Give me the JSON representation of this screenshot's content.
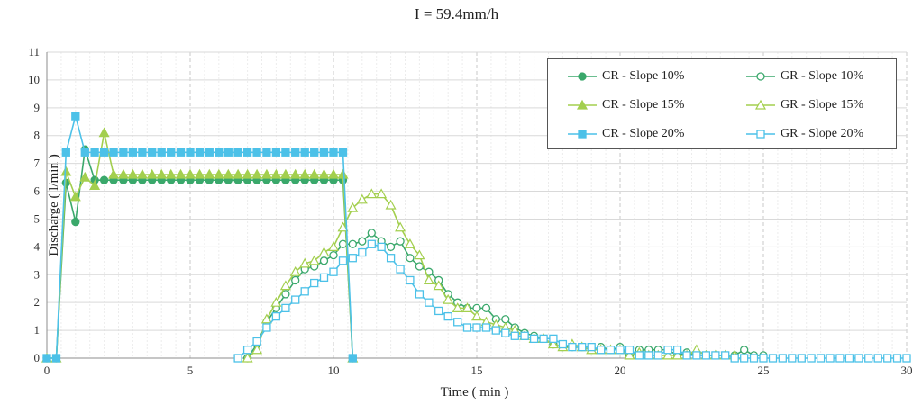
{
  "chart_data": {
    "type": "line",
    "title": "I = 59.4mm/h",
    "xlabel": "Time ( min )",
    "ylabel": "Discharge ( l/min )",
    "xlim": [
      0,
      30
    ],
    "ylim": [
      0,
      11
    ],
    "xticks": [
      0,
      5,
      10,
      15,
      20,
      25,
      30
    ],
    "yticks": [
      0,
      1,
      2,
      3,
      4,
      5,
      6,
      7,
      8,
      9,
      10,
      11
    ],
    "grid": true,
    "legend_position": "top-right",
    "series": [
      {
        "name": "CR - Slope 10%",
        "color": "#3aa86b",
        "marker": "circle",
        "filled": true,
        "x": [
          0,
          0.33,
          0.67,
          1.0,
          1.33,
          1.67,
          2.0,
          2.33,
          2.67,
          3.0,
          3.33,
          3.67,
          4.0,
          4.33,
          4.67,
          5.0,
          5.33,
          5.67,
          6.0,
          6.33,
          6.67,
          7.0,
          7.33,
          7.67,
          8.0,
          8.33,
          8.67,
          9.0,
          9.33,
          9.67,
          10.0,
          10.33,
          10.67
        ],
        "y": [
          0,
          0,
          6.3,
          4.9,
          7.5,
          6.4,
          6.4,
          6.4,
          6.4,
          6.4,
          6.4,
          6.4,
          6.4,
          6.4,
          6.4,
          6.4,
          6.4,
          6.4,
          6.4,
          6.4,
          6.4,
          6.4,
          6.4,
          6.4,
          6.4,
          6.4,
          6.4,
          6.4,
          6.4,
          6.4,
          6.4,
          6.4,
          0
        ]
      },
      {
        "name": "GR - Slope 10%",
        "color": "#3aa86b",
        "marker": "circle",
        "filled": false,
        "x": [
          7.0,
          7.33,
          7.67,
          8.0,
          8.33,
          8.67,
          9.0,
          9.33,
          9.67,
          10.0,
          10.33,
          10.67,
          11.0,
          11.33,
          11.67,
          12.0,
          12.33,
          12.67,
          13.0,
          13.33,
          13.67,
          14.0,
          14.33,
          14.67,
          15.0,
          15.33,
          15.67,
          16.0,
          16.33,
          16.67,
          17.0,
          17.33,
          17.67,
          18.0,
          18.33,
          18.67,
          19.0,
          19.33,
          19.67,
          20.0,
          20.33,
          20.67,
          21.0,
          21.33,
          21.67,
          22.0,
          22.33,
          22.67,
          23.0,
          23.33,
          23.67,
          24.0,
          24.33,
          24.67,
          25.0
        ],
        "y": [
          0,
          0.5,
          1.3,
          1.8,
          2.3,
          2.8,
          3.2,
          3.3,
          3.5,
          3.7,
          4.1,
          4.1,
          4.2,
          4.5,
          4.2,
          4.0,
          4.2,
          3.6,
          3.3,
          3.1,
          2.8,
          2.3,
          2.0,
          1.8,
          1.8,
          1.8,
          1.4,
          1.4,
          1.1,
          0.9,
          0.8,
          0.7,
          0.5,
          0.4,
          0.4,
          0.4,
          0.3,
          0.4,
          0.3,
          0.4,
          0.1,
          0.3,
          0.3,
          0.3,
          0.3,
          0.1,
          0.2,
          0.1,
          0.1,
          0.1,
          0.1,
          0.1,
          0.3,
          0.1,
          0.1
        ]
      },
      {
        "name": "CR - Slope 15%",
        "color": "#a3cf4e",
        "marker": "triangle",
        "filled": true,
        "x": [
          0,
          0.33,
          0.67,
          1.0,
          1.33,
          1.67,
          2.0,
          2.33,
          2.67,
          3.0,
          3.33,
          3.67,
          4.0,
          4.33,
          4.67,
          5.0,
          5.33,
          5.67,
          6.0,
          6.33,
          6.67,
          7.0,
          7.33,
          7.67,
          8.0,
          8.33,
          8.67,
          9.0,
          9.33,
          9.67,
          10.0,
          10.33,
          10.67
        ],
        "y": [
          0,
          0,
          6.7,
          5.8,
          6.5,
          6.2,
          8.1,
          6.6,
          6.6,
          6.6,
          6.6,
          6.6,
          6.6,
          6.6,
          6.6,
          6.6,
          6.6,
          6.6,
          6.6,
          6.6,
          6.6,
          6.6,
          6.6,
          6.6,
          6.6,
          6.6,
          6.6,
          6.6,
          6.6,
          6.6,
          6.6,
          6.6,
          0
        ]
      },
      {
        "name": "GR - Slope 15%",
        "color": "#a3cf4e",
        "marker": "triangle",
        "filled": false,
        "x": [
          7.0,
          7.33,
          7.67,
          8.0,
          8.33,
          8.67,
          9.0,
          9.33,
          9.67,
          10.0,
          10.33,
          10.67,
          11.0,
          11.33,
          11.67,
          12.0,
          12.33,
          12.67,
          13.0,
          13.33,
          13.67,
          14.0,
          14.33,
          14.67,
          15.0,
          15.33,
          15.67,
          16.0,
          16.33,
          16.67,
          17.0,
          17.33,
          17.67,
          18.0,
          18.33,
          18.67,
          19.0,
          19.33,
          19.67,
          20.0,
          20.33,
          20.67,
          21.0,
          21.33,
          21.67,
          22.0,
          22.33,
          22.67,
          23.0,
          23.33,
          23.67,
          24.0
        ],
        "y": [
          0,
          0.3,
          1.4,
          2.0,
          2.6,
          3.1,
          3.4,
          3.5,
          3.8,
          4.0,
          4.7,
          5.4,
          5.7,
          5.9,
          5.9,
          5.5,
          4.7,
          4.1,
          3.7,
          2.8,
          2.6,
          2.1,
          1.8,
          1.8,
          1.5,
          1.3,
          1.2,
          1.1,
          1.0,
          0.8,
          0.7,
          0.7,
          0.5,
          0.4,
          0.5,
          0.4,
          0.3,
          0.3,
          0.3,
          0.3,
          0.1,
          0.2,
          0.1,
          0.1,
          0.1,
          0.1,
          0.1,
          0.3,
          0.1,
          0.1,
          0.1,
          0.1
        ]
      },
      {
        "name": "CR - Slope 20%",
        "color": "#4cc1e8",
        "marker": "square",
        "filled": true,
        "x": [
          0,
          0.33,
          0.67,
          1.0,
          1.33,
          1.67,
          2.0,
          2.33,
          2.67,
          3.0,
          3.33,
          3.67,
          4.0,
          4.33,
          4.67,
          5.0,
          5.33,
          5.67,
          6.0,
          6.33,
          6.67,
          7.0,
          7.33,
          7.67,
          8.0,
          8.33,
          8.67,
          9.0,
          9.33,
          9.67,
          10.0,
          10.33,
          10.67
        ],
        "y": [
          0,
          0,
          7.4,
          8.7,
          7.4,
          7.4,
          7.4,
          7.4,
          7.4,
          7.4,
          7.4,
          7.4,
          7.4,
          7.4,
          7.4,
          7.4,
          7.4,
          7.4,
          7.4,
          7.4,
          7.4,
          7.4,
          7.4,
          7.4,
          7.4,
          7.4,
          7.4,
          7.4,
          7.4,
          7.4,
          7.4,
          7.4,
          0
        ]
      },
      {
        "name": "GR - Slope 20%",
        "color": "#4cc1e8",
        "marker": "square",
        "filled": false,
        "x": [
          6.67,
          7.0,
          7.33,
          7.67,
          8.0,
          8.33,
          8.67,
          9.0,
          9.33,
          9.67,
          10.0,
          10.33,
          10.67,
          11.0,
          11.33,
          11.67,
          12.0,
          12.33,
          12.67,
          13.0,
          13.33,
          13.67,
          14.0,
          14.33,
          14.67,
          15.0,
          15.33,
          15.67,
          16.0,
          16.33,
          16.67,
          17.0,
          17.33,
          17.67,
          18.0,
          18.33,
          18.67,
          19.0,
          19.33,
          19.67,
          20.0,
          20.33,
          20.67,
          21.0,
          21.33,
          21.67,
          22.0,
          22.33,
          22.67,
          23.0,
          23.33,
          23.67,
          24.0,
          24.33,
          24.67,
          25.0,
          25.33,
          25.67,
          26.0,
          26.33,
          26.67,
          27.0,
          27.33,
          27.67,
          28.0,
          28.33,
          28.67,
          29.0,
          29.33,
          29.67,
          30.0
        ],
        "y": [
          0,
          0.3,
          0.6,
          1.1,
          1.5,
          1.8,
          2.1,
          2.4,
          2.7,
          2.9,
          3.1,
          3.5,
          3.6,
          3.8,
          4.1,
          4.0,
          3.6,
          3.2,
          2.8,
          2.3,
          2.0,
          1.7,
          1.5,
          1.3,
          1.1,
          1.1,
          1.1,
          1.0,
          0.9,
          0.8,
          0.8,
          0.7,
          0.7,
          0.7,
          0.5,
          0.4,
          0.4,
          0.4,
          0.3,
          0.3,
          0.3,
          0.3,
          0.1,
          0.1,
          0.1,
          0.3,
          0.3,
          0.1,
          0.1,
          0.1,
          0.1,
          0.1,
          0,
          0,
          0,
          0,
          0,
          0,
          0,
          0,
          0,
          0,
          0,
          0,
          0,
          0,
          0,
          0,
          0,
          0,
          0
        ]
      }
    ]
  }
}
